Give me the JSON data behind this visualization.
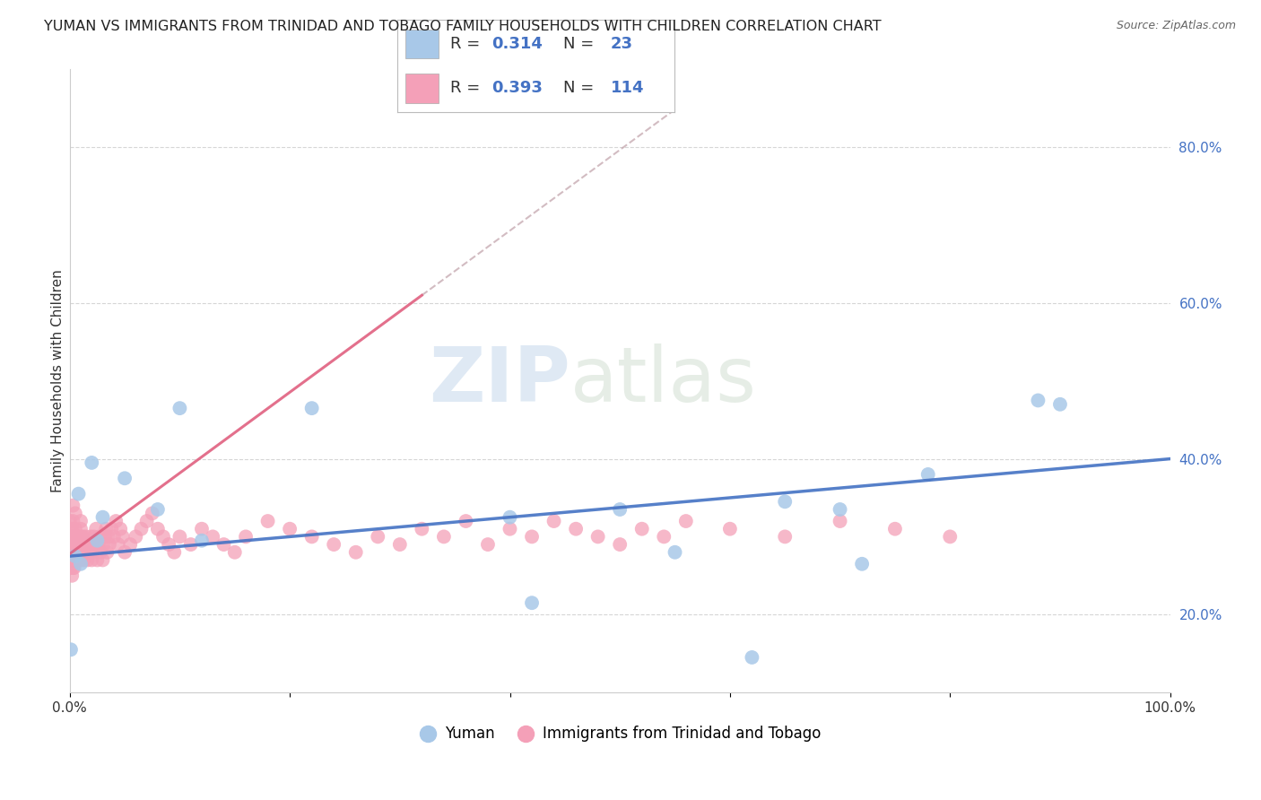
{
  "title": "YUMAN VS IMMIGRANTS FROM TRINIDAD AND TOBAGO FAMILY HOUSEHOLDS WITH CHILDREN CORRELATION CHART",
  "source": "Source: ZipAtlas.com",
  "ylabel": "Family Households with Children",
  "series": [
    {
      "name": "Yuman",
      "R": 0.314,
      "N": 23,
      "color": "#a8c8e8",
      "line_color": "#4472c4",
      "x": [
        0.001,
        0.005,
        0.008,
        0.01,
        0.02,
        0.025,
        0.03,
        0.05,
        0.08,
        0.1,
        0.12,
        0.22,
        0.4,
        0.42,
        0.5,
        0.55,
        0.62,
        0.65,
        0.7,
        0.72,
        0.78,
        0.88,
        0.9
      ],
      "y": [
        0.155,
        0.275,
        0.355,
        0.265,
        0.395,
        0.295,
        0.325,
        0.375,
        0.335,
        0.465,
        0.295,
        0.465,
        0.325,
        0.215,
        0.335,
        0.28,
        0.145,
        0.345,
        0.335,
        0.265,
        0.38,
        0.475,
        0.47
      ]
    },
    {
      "name": "Immigrants from Trinidad and Tobago",
      "R": 0.393,
      "N": 114,
      "color": "#f4a0b8",
      "line_color": "#e06080",
      "x": [
        0.0,
        0.0,
        0.0,
        0.0,
        0.001,
        0.001,
        0.001,
        0.001,
        0.001,
        0.002,
        0.002,
        0.002,
        0.002,
        0.003,
        0.003,
        0.003,
        0.003,
        0.003,
        0.004,
        0.004,
        0.004,
        0.005,
        0.005,
        0.005,
        0.005,
        0.006,
        0.006,
        0.007,
        0.007,
        0.008,
        0.008,
        0.009,
        0.009,
        0.01,
        0.01,
        0.01,
        0.01,
        0.01,
        0.01,
        0.012,
        0.012,
        0.013,
        0.014,
        0.015,
        0.015,
        0.016,
        0.017,
        0.018,
        0.019,
        0.02,
        0.02,
        0.021,
        0.022,
        0.023,
        0.024,
        0.025,
        0.026,
        0.027,
        0.028,
        0.03,
        0.031,
        0.032,
        0.033,
        0.034,
        0.035,
        0.036,
        0.038,
        0.04,
        0.042,
        0.044,
        0.046,
        0.048,
        0.05,
        0.055,
        0.06,
        0.065,
        0.07,
        0.075,
        0.08,
        0.085,
        0.09,
        0.095,
        0.1,
        0.11,
        0.12,
        0.13,
        0.14,
        0.15,
        0.16,
        0.18,
        0.2,
        0.22,
        0.24,
        0.26,
        0.28,
        0.3,
        0.32,
        0.34,
        0.36,
        0.38,
        0.4,
        0.42,
        0.44,
        0.46,
        0.48,
        0.5,
        0.52,
        0.54,
        0.56,
        0.6,
        0.65,
        0.7,
        0.75,
        0.8
      ],
      "y": [
        0.27,
        0.28,
        0.3,
        0.32,
        0.26,
        0.27,
        0.28,
        0.29,
        0.31,
        0.27,
        0.29,
        0.31,
        0.25,
        0.26,
        0.28,
        0.3,
        0.32,
        0.34,
        0.26,
        0.28,
        0.3,
        0.27,
        0.29,
        0.31,
        0.33,
        0.28,
        0.3,
        0.27,
        0.29,
        0.28,
        0.3,
        0.27,
        0.29,
        0.27,
        0.28,
        0.29,
        0.3,
        0.31,
        0.32,
        0.28,
        0.3,
        0.27,
        0.29,
        0.28,
        0.3,
        0.27,
        0.29,
        0.28,
        0.3,
        0.27,
        0.29,
        0.28,
        0.3,
        0.29,
        0.31,
        0.27,
        0.29,
        0.3,
        0.28,
        0.27,
        0.29,
        0.3,
        0.31,
        0.28,
        0.3,
        0.29,
        0.31,
        0.3,
        0.32,
        0.29,
        0.31,
        0.3,
        0.28,
        0.29,
        0.3,
        0.31,
        0.32,
        0.33,
        0.31,
        0.3,
        0.29,
        0.28,
        0.3,
        0.29,
        0.31,
        0.3,
        0.29,
        0.28,
        0.3,
        0.32,
        0.31,
        0.3,
        0.29,
        0.28,
        0.3,
        0.29,
        0.31,
        0.3,
        0.32,
        0.29,
        0.31,
        0.3,
        0.32,
        0.31,
        0.3,
        0.29,
        0.31,
        0.3,
        0.32,
        0.31,
        0.3,
        0.32,
        0.31,
        0.3
      ]
    }
  ],
  "xlim": [
    0.0,
    1.0
  ],
  "ylim": [
    0.1,
    0.9
  ],
  "xticks": [
    0.0,
    0.2,
    0.4,
    0.6,
    0.8,
    1.0
  ],
  "xtick_labels": [
    "0.0%",
    "",
    "",
    "",
    "",
    "100.0%"
  ],
  "yticks": [
    0.2,
    0.4,
    0.6,
    0.8
  ],
  "ytick_labels": [
    "20.0%",
    "40.0%",
    "60.0%",
    "80.0%"
  ],
  "watermark_top": "ZIP",
  "watermark_bottom": "atlas",
  "background_color": "#ffffff",
  "grid_color": "#cccccc",
  "title_fontsize": 11.5,
  "axis_label_fontsize": 11,
  "tick_fontsize": 11,
  "legend_fontsize": 13,
  "yuman_line_start_x": 0.0,
  "yuman_line_start_y": 0.275,
  "yuman_line_end_x": 1.0,
  "yuman_line_end_y": 0.4,
  "tt_line_start_x": 0.0,
  "tt_line_start_y": 0.278,
  "tt_line_end_x": 0.32,
  "tt_line_end_y": 0.61
}
